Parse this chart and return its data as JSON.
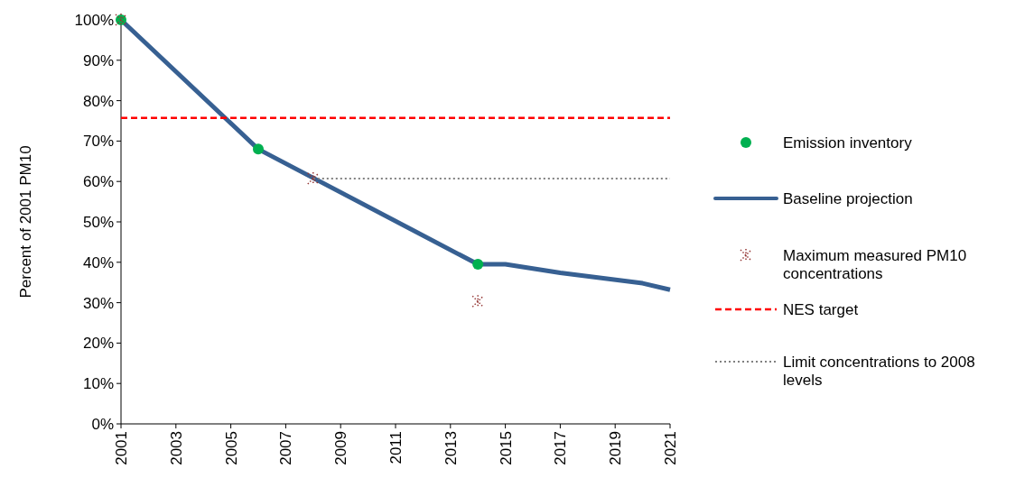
{
  "chart_data": {
    "type": "line",
    "ylabel": "Percent of 2001 PM10",
    "xlim": [
      2001,
      2021
    ],
    "xticks": [
      2001,
      2003,
      2005,
      2007,
      2009,
      2011,
      2013,
      2015,
      2017,
      2019,
      2021
    ],
    "ylim": [
      0,
      1
    ],
    "yticks": [
      {
        "value": 0,
        "label": "0%"
      },
      {
        "value": 0.1,
        "label": "10%"
      },
      {
        "value": 0.2,
        "label": "20%"
      },
      {
        "value": 0.3,
        "label": "30%"
      },
      {
        "value": 0.4,
        "label": "40%"
      },
      {
        "value": 0.5,
        "label": "50%"
      },
      {
        "value": 0.6,
        "label": "60%"
      },
      {
        "value": 0.7,
        "label": "70%"
      },
      {
        "value": 0.8,
        "label": "80%"
      },
      {
        "value": 0.9,
        "label": "90%"
      },
      {
        "value": 1,
        "label": "100%"
      }
    ],
    "grid": false,
    "legend": "right",
    "series": [
      {
        "name": "Emission inventory",
        "type": "scatter",
        "marker": "circle",
        "color": "#00b050",
        "x": [
          2001,
          2006,
          2014
        ],
        "values": [
          1,
          0.68,
          0.395
        ]
      },
      {
        "name": "Baseline projection",
        "marker": "none",
        "line_style": "solid",
        "color": "#376092",
        "x": [
          2001,
          2006,
          2014,
          2015,
          2017,
          2020,
          2021
        ],
        "values": [
          1,
          0.68,
          0.395,
          0.395,
          0.374,
          0.348,
          0.332
        ]
      },
      {
        "name": "Maximum measured PM10 concentrations",
        "type": "scatter",
        "marker": "cross",
        "color": "#953735",
        "x": [
          2001,
          2008,
          2014
        ],
        "values": [
          1,
          0.607,
          0.303
        ]
      },
      {
        "name": "NES target",
        "type": "line",
        "marker": "none",
        "line_style": "dashed",
        "color": "#ff0000",
        "x": [
          2001,
          2021
        ],
        "values": [
          0.757,
          0.757
        ]
      },
      {
        "name": "Limit concentrations to 2008 levels",
        "type": "line",
        "marker": "none",
        "line_style": "dotted",
        "color": "#808080",
        "x": [
          2008,
          2021
        ],
        "values": [
          0.607,
          0.607
        ]
      }
    ]
  }
}
